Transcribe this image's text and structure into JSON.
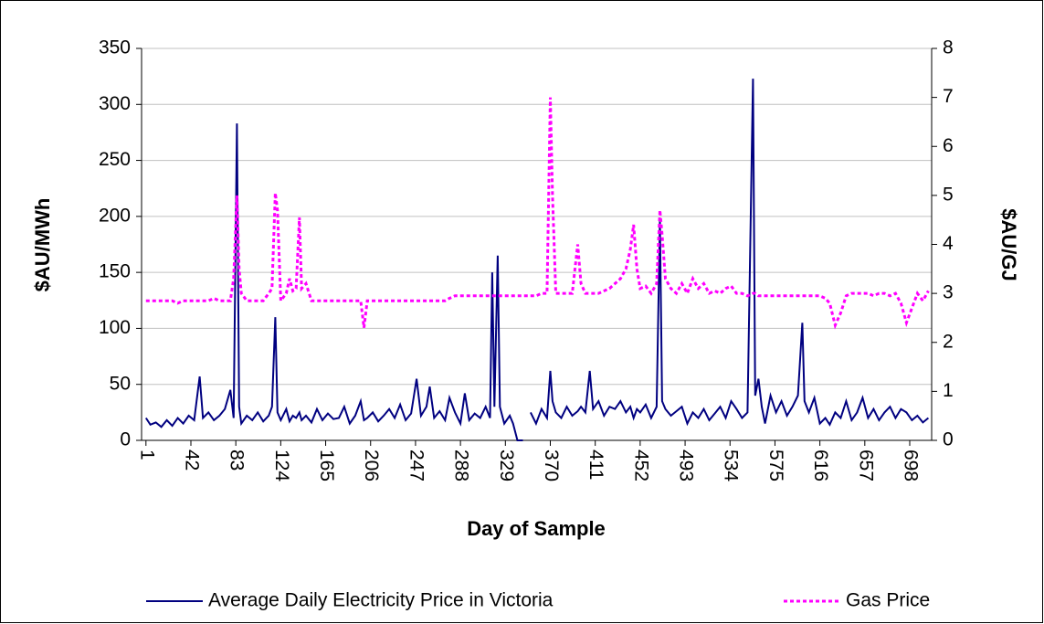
{
  "chart_data": {
    "type": "line",
    "xlabel": "Day of Sample",
    "ylabel": "$AU/MWh",
    "y2label": "$AU/GJ",
    "x": [
      1,
      5,
      10,
      15,
      20,
      25,
      30,
      35,
      40,
      45,
      50,
      53,
      58,
      63,
      68,
      73,
      78,
      81,
      84,
      86,
      88,
      93,
      98,
      103,
      108,
      113,
      116,
      119,
      121,
      124,
      129,
      132,
      135,
      138,
      141,
      143,
      147,
      152,
      157,
      162,
      167,
      172,
      177,
      182,
      187,
      192,
      197,
      200,
      203,
      208,
      213,
      218,
      223,
      228,
      233,
      238,
      243,
      248,
      252,
      257,
      260,
      264,
      269,
      274,
      278,
      283,
      288,
      292,
      296,
      301,
      306,
      311,
      315,
      317,
      319,
      322,
      324,
      328,
      333,
      336,
      340,
      345,
      348,
      352,
      357,
      362,
      367,
      370,
      372,
      375,
      380,
      385,
      390,
      395,
      398,
      402,
      406,
      409,
      414,
      419,
      424,
      429,
      434,
      439,
      443,
      446,
      449,
      452,
      457,
      462,
      467,
      470,
      472,
      475,
      480,
      485,
      490,
      495,
      500,
      505,
      510,
      515,
      520,
      525,
      530,
      535,
      540,
      545,
      550,
      555,
      557,
      560,
      563,
      566,
      571,
      576,
      581,
      586,
      591,
      596,
      600,
      602,
      606,
      611,
      616,
      621,
      625,
      630,
      635,
      640,
      645,
      650,
      655,
      660,
      665,
      670,
      675,
      680,
      685,
      690,
      695,
      700,
      705,
      710,
      715
    ],
    "series": [
      {
        "name": "Average Daily Electricity Price in Victoria",
        "color": "#000080",
        "axis": "y",
        "dash": "none",
        "values": [
          20,
          14,
          16,
          12,
          18,
          13,
          20,
          15,
          22,
          18,
          57,
          20,
          25,
          18,
          22,
          28,
          45,
          20,
          283,
          30,
          15,
          22,
          18,
          25,
          17,
          22,
          30,
          110,
          25,
          18,
          28,
          17,
          22,
          20,
          25,
          18,
          22,
          16,
          28,
          18,
          24,
          19,
          20,
          30,
          15,
          22,
          35,
          18,
          20,
          25,
          17,
          22,
          28,
          20,
          32,
          18,
          24,
          55,
          22,
          30,
          48,
          20,
          26,
          18,
          38,
          25,
          15,
          42,
          18,
          24,
          20,
          30,
          20,
          150,
          30,
          165,
          30,
          15,
          22,
          15,
          0,
          0,
          null,
          25,
          15,
          28,
          20,
          62,
          35,
          25,
          20,
          30,
          22,
          26,
          30,
          25,
          62,
          28,
          35,
          22,
          30,
          28,
          35,
          25,
          30,
          20,
          28,
          25,
          32,
          20,
          30,
          197,
          35,
          28,
          22,
          26,
          30,
          15,
          25,
          20,
          28,
          18,
          24,
          30,
          20,
          35,
          28,
          20,
          25,
          323,
          40,
          55,
          30,
          15,
          40,
          25,
          35,
          22,
          30,
          40,
          105,
          35,
          25,
          38,
          15,
          20,
          14,
          25,
          20,
          35,
          18,
          25,
          38,
          20,
          28,
          18,
          25,
          30,
          20,
          28,
          25,
          18,
          22,
          16,
          20
        ]
      },
      {
        "name": "Gas Price",
        "color": "#ff00ff",
        "axis": "y2",
        "dash": "4 3",
        "values": [
          2.85,
          2.85,
          2.85,
          2.85,
          2.85,
          2.85,
          2.8,
          2.85,
          2.85,
          2.85,
          2.85,
          2.85,
          2.85,
          2.9,
          2.85,
          2.85,
          2.85,
          3.3,
          5.0,
          3.5,
          3.0,
          2.85,
          2.85,
          2.85,
          2.85,
          3.0,
          3.1,
          5.05,
          4.7,
          2.85,
          3.0,
          3.3,
          3.05,
          3.1,
          4.55,
          3.1,
          3.2,
          2.85,
          2.85,
          2.85,
          2.85,
          2.85,
          2.85,
          2.85,
          2.85,
          2.85,
          2.85,
          2.3,
          2.85,
          2.85,
          2.85,
          2.85,
          2.85,
          2.85,
          2.85,
          2.85,
          2.85,
          2.85,
          2.85,
          2.85,
          2.85,
          2.85,
          2.85,
          2.85,
          2.9,
          2.95,
          2.95,
          2.95,
          2.95,
          2.95,
          2.95,
          2.95,
          2.95,
          2.95,
          2.95,
          2.95,
          2.95,
          2.95,
          2.95,
          2.95,
          2.95,
          2.95,
          2.95,
          2.95,
          2.95,
          3.0,
          3.0,
          7.0,
          5.0,
          3.0,
          3.0,
          3.0,
          3.0,
          4.0,
          3.2,
          3.0,
          3.0,
          3.0,
          3.0,
          3.05,
          3.1,
          3.2,
          3.3,
          3.5,
          3.9,
          4.4,
          3.5,
          3.1,
          3.15,
          3.0,
          3.2,
          4.7,
          4.2,
          3.3,
          3.1,
          3.0,
          3.2,
          3.0,
          3.3,
          3.1,
          3.2,
          3.0,
          3.05,
          3.0,
          3.1,
          3.15,
          3.0,
          3.0,
          2.95,
          3.0,
          3.0,
          2.95,
          2.95,
          2.95,
          2.95,
          2.95,
          2.95,
          2.95,
          2.95,
          2.95,
          2.95,
          2.95,
          2.95,
          2.95,
          2.95,
          2.9,
          2.8,
          2.35,
          2.6,
          2.95,
          3.0,
          3.0,
          3.0,
          3.0,
          2.95,
          3.0,
          3.0,
          2.95,
          3.0,
          2.8,
          2.4,
          2.7,
          3.0,
          2.85,
          3.05
        ]
      }
    ],
    "xlim": [
      -3,
      718
    ],
    "xticks": [
      1,
      42,
      83,
      124,
      165,
      206,
      247,
      288,
      329,
      370,
      411,
      452,
      493,
      534,
      575,
      616,
      657,
      698
    ],
    "ylim": [
      0,
      350
    ],
    "yticks": [
      0,
      50,
      100,
      150,
      200,
      250,
      300,
      350
    ],
    "y2lim": [
      0,
      8
    ],
    "y2ticks": [
      0,
      1,
      2,
      3,
      4,
      5,
      6,
      7,
      8
    ],
    "grid": true,
    "legend": "bottom"
  }
}
